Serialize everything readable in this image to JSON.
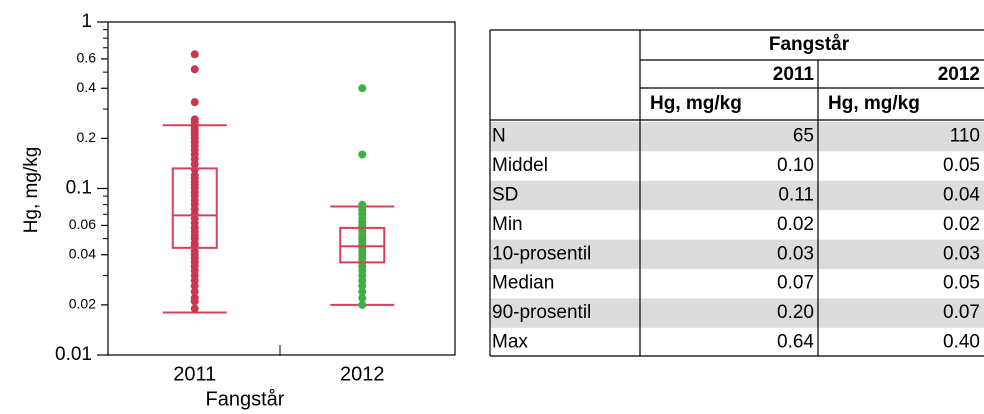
{
  "chart_data": {
    "type": "box",
    "log_scale": true,
    "y_label": "Hg, mg/kg",
    "x_label": "Fangstår",
    "categories": [
      "2011",
      "2012"
    ],
    "ylim": [
      0.01,
      1
    ],
    "yticks": [
      0.01,
      0.02,
      0.04,
      0.06,
      0.1,
      0.2,
      0.4,
      0.6,
      1
    ],
    "yminor": [
      0.03,
      0.05,
      0.07,
      0.08,
      0.09,
      0.3,
      0.5,
      0.7,
      0.8,
      0.9
    ],
    "box_color": "#d8405a",
    "series": [
      {
        "color": "#cc3550",
        "whislo": 0.018,
        "q1": 0.044,
        "med": 0.069,
        "q3": 0.132,
        "whishi": 0.24,
        "points": [
          0.64,
          0.52,
          0.33,
          0.26,
          0.25,
          0.24,
          0.23,
          0.22,
          0.21,
          0.2,
          0.19,
          0.18,
          0.17,
          0.16,
          0.15,
          0.14,
          0.13,
          0.12,
          0.115,
          0.11,
          0.105,
          0.1,
          0.095,
          0.09,
          0.085,
          0.08,
          0.075,
          0.07,
          0.066,
          0.062,
          0.058,
          0.055,
          0.052,
          0.05,
          0.047,
          0.045,
          0.042,
          0.04,
          0.038,
          0.036,
          0.034,
          0.032,
          0.03,
          0.028,
          0.026,
          0.024,
          0.022,
          0.021,
          0.019
        ]
      },
      {
        "color": "#3cb043",
        "whislo": 0.02,
        "q1": 0.036,
        "med": 0.045,
        "q3": 0.058,
        "whishi": 0.078,
        "points": [
          0.4,
          0.16,
          0.08,
          0.077,
          0.074,
          0.07,
          0.066,
          0.063,
          0.06,
          0.057,
          0.055,
          0.052,
          0.05,
          0.048,
          0.046,
          0.044,
          0.042,
          0.04,
          0.038,
          0.036,
          0.034,
          0.032,
          0.03,
          0.028,
          0.026,
          0.024,
          0.022,
          0.02
        ]
      }
    ]
  },
  "table": {
    "group_header": "Fangstår",
    "years": [
      "2011",
      "2012"
    ],
    "units": [
      "Hg, mg/kg",
      "Hg, mg/kg"
    ],
    "rows": [
      [
        "N",
        "65",
        "110"
      ],
      [
        "Middel",
        "0.10",
        "0.05"
      ],
      [
        "SD",
        "0.11",
        "0.04"
      ],
      [
        "Min",
        "0.02",
        "0.02"
      ],
      [
        "10-prosentil",
        "0.03",
        "0.03"
      ],
      [
        "Median",
        "0.07",
        "0.05"
      ],
      [
        "90-prosentil",
        "0.20",
        "0.07"
      ],
      [
        "Max",
        "0.64",
        "0.40"
      ]
    ]
  }
}
